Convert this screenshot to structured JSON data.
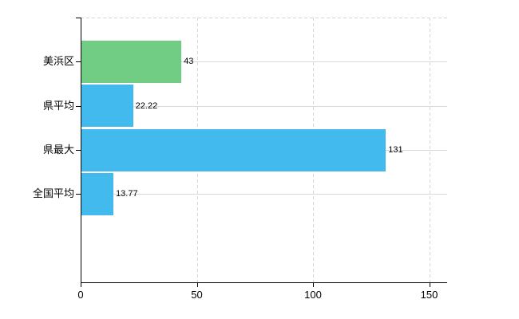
{
  "chart_data": {
    "type": "bar",
    "orientation": "horizontal",
    "title": "",
    "categories": [
      "美浜区",
      "県平均",
      "県最大",
      "全国平均"
    ],
    "values": [
      43,
      22.22,
      131,
      13.77
    ],
    "value_labels": [
      "43",
      "22.22",
      "131",
      "13.77"
    ],
    "bar_colors": [
      "#70cd83",
      "#42baee",
      "#42baee",
      "#42baee"
    ],
    "x_ticks": [
      0,
      50,
      100,
      150
    ],
    "x_tick_labels": [
      "0",
      "50",
      "100",
      "150"
    ],
    "xlim": [
      0,
      157.8
    ],
    "grid": true,
    "legend": false,
    "colors": {
      "axis": "#000000",
      "grid_solid": "#d9d9d9",
      "grid_dashed": "#d6d6d6",
      "background": "#ffffff",
      "text": "#000000"
    }
  }
}
